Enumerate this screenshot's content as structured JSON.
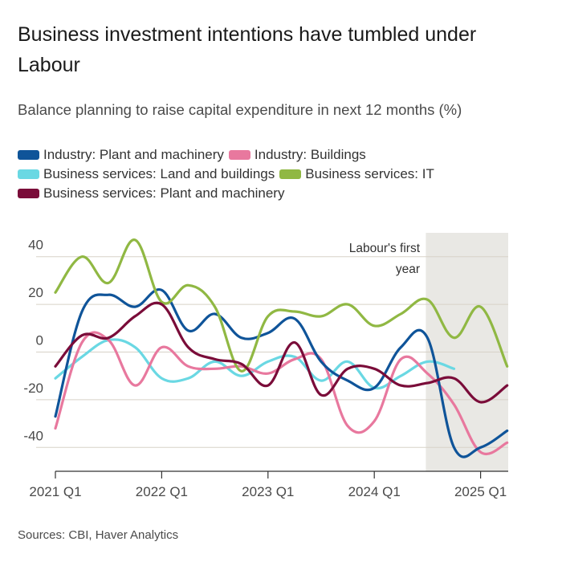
{
  "title": "Business investment intentions have tumbled under Labour",
  "subtitle": "Balance planning to raise capital expenditure in next 12 months (%)",
  "source": "Sources: CBI, Haver Analytics",
  "colors": {
    "shade": "#e9e8e4",
    "grid": "#d7d2c8",
    "axis": "#333333",
    "tick_text": "#4a4a4a"
  },
  "chart_data": {
    "type": "line",
    "x": [
      "2021 Q1",
      "2021 Q2",
      "2021 Q3",
      "2021 Q4",
      "2022 Q1",
      "2022 Q2",
      "2022 Q3",
      "2022 Q4",
      "2023 Q1",
      "2023 Q2",
      "2023 Q3",
      "2023 Q4",
      "2024 Q1",
      "2024 Q2",
      "2024 Q3",
      "2024 Q4",
      "2025 Q1",
      "2025 Q2"
    ],
    "x_tick_labels": [
      "2021 Q1",
      "2022 Q1",
      "2023 Q1",
      "2024 Q1",
      "2025 Q1"
    ],
    "ylim": [
      -50,
      50
    ],
    "y_ticks": [
      -40,
      -20,
      0,
      20,
      40
    ],
    "grid": true,
    "legend_position": "top",
    "annotation": {
      "text_lines": [
        "Labour's first",
        "year"
      ],
      "shaded_from": "2024 Q3",
      "shaded_to": "2025 Q2"
    },
    "series": [
      {
        "name": "Industry: Plant and machinery",
        "color": "#0f5499",
        "values": [
          -27,
          17,
          24,
          19,
          26,
          9,
          16,
          6,
          8,
          14,
          -4,
          -12,
          -15,
          2,
          6,
          -40,
          -40,
          -33
        ]
      },
      {
        "name": "Industry: Buildings",
        "color": "#e8789e",
        "values": [
          -32,
          4,
          5,
          -14,
          2,
          -6,
          -7,
          -6,
          -9,
          -3,
          -3,
          -31,
          -29,
          -3,
          -9,
          -22,
          -42,
          -38
        ]
      },
      {
        "name": "Business services: Land and buildings",
        "color": "#6ad8e3",
        "values": [
          -11,
          -2,
          5,
          2,
          -11,
          -11,
          -4,
          -10,
          -4,
          -2,
          -12,
          -4,
          -15,
          -10,
          -4,
          -7,
          null,
          null
        ]
      },
      {
        "name": "Business services: IT",
        "color": "#90b843",
        "values": [
          25,
          40,
          29,
          47,
          21,
          28,
          19,
          -8,
          15,
          17,
          15,
          20,
          11,
          16,
          22,
          6,
          19,
          -6
        ]
      },
      {
        "name": "Business services: Plant and machinery",
        "color": "#7a0c39",
        "values": [
          -6,
          7,
          6,
          15,
          20,
          2,
          -3,
          -5,
          -14,
          4,
          -18,
          -7,
          -7,
          -14,
          -13,
          -11,
          -21,
          -14
        ]
      }
    ]
  }
}
